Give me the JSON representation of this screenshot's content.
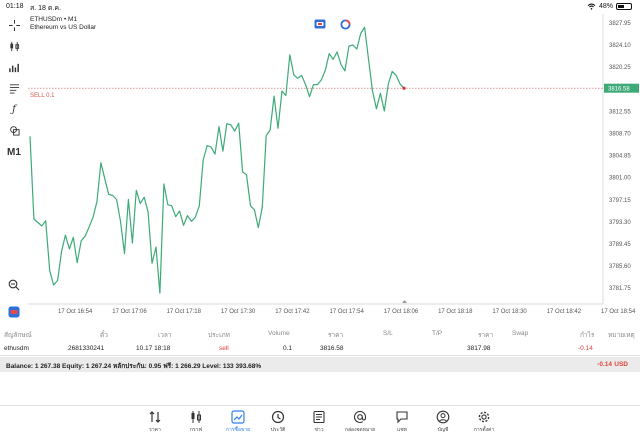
{
  "status_bar": {
    "time": "01:18",
    "date": "ส. 18 ต.ค.",
    "battery": "48%",
    "battery_level": 0.48
  },
  "chart": {
    "symbol_line": "ETHUSDm • M1",
    "symbol_desc": "Ethereum vs US Dollar",
    "trade_label": "SELL 0.1",
    "trade_price_label": "3816.58",
    "timeframe": "M1"
  },
  "chart_data": {
    "type": "line",
    "title": "",
    "ylim": [
      3779.0,
      3829.5
    ],
    "y_ticks": [
      "3827.95",
      "3824.10",
      "3820.25",
      "3816.58",
      "3812.55",
      "3808.70",
      "3804.85",
      "3801.00",
      "3797.15",
      "3793.30",
      "3789.45",
      "3785.60",
      "3781.75"
    ],
    "x_ticks": [
      "17 Oct 16:54",
      "17 Oct 17:06",
      "17 Oct 17:18",
      "17 Oct 17:30",
      "17 Oct 17:42",
      "17 Oct 17:54",
      "17 Oct 18:06",
      "17 Oct 18:18",
      "17 Oct 18:30",
      "17 Oct 18:42",
      "17 Oct 18:54"
    ],
    "line_color": "#3daa77",
    "trade_line_price": 3816.58,
    "series": [
      {
        "values": [
          3808.2,
          3793.8,
          3793.2,
          3792.6,
          3793.5,
          3784.8,
          3782.3,
          3783.1,
          3788.1,
          3791.0,
          3788.6,
          3790.6,
          3786.2,
          3790.0,
          3790.8,
          3792.4,
          3794.1,
          3796.8,
          3803.6,
          3800.8,
          3798.1,
          3797.9,
          3797.2,
          3793.4,
          3787.8,
          3797.2,
          3789.6,
          3798.8,
          3796.5,
          3797.6,
          3795.0,
          3786.1,
          3788.9,
          3780.9,
          3799.9,
          3796.3,
          3796.1,
          3794.2,
          3795.2,
          3792.7,
          3794.4,
          3793.4,
          3794.1,
          3796.1,
          3804.1,
          3806.6,
          3806.3,
          3805.1,
          3809.9,
          3805.6,
          3810.4,
          3810.2,
          3809.1,
          3810.5,
          3802.0,
          3801.5,
          3796.1,
          3795.4,
          3792.3,
          3795.9,
          3808.3,
          3809.3,
          3815.2,
          3809.6,
          3816.1,
          3815.3,
          3822.4,
          3818.9,
          3818.3,
          3818.8,
          3817.2,
          3815.1,
          3817.2,
          3817.2,
          3818.0,
          3819.7,
          3822.6,
          3821.6,
          3822.9,
          3820.7,
          3819.6,
          3823.9,
          3824.1,
          3823.4,
          3826.1,
          3827.2,
          3821.5,
          3816.1,
          3813.0,
          3815.7,
          3812.6,
          3817.3,
          3819.5,
          3818.8,
          3817.3,
          3816.58
        ]
      }
    ]
  },
  "table": {
    "headers": [
      "สัญลักษณ์",
      "ตั๋ว",
      "เวลา",
      "ประเภท",
      "Volume",
      "ราคา",
      "S/L",
      "T/P",
      "ราคา",
      "Swap",
      "กำไร",
      "หมายเหตุ"
    ],
    "row": [
      "ethusdm",
      "2681330241",
      "10.17 18:18",
      "sell",
      "0.1",
      "3816.58",
      "",
      "",
      "3817.98",
      "",
      "-0.14",
      ""
    ]
  },
  "balance": {
    "text": "Balance: 1 267.38 Equity: 1 267.24 หลักประกัน: 0.95 ฟรี: 1 266.29 Level: 133 393.68%",
    "pl": "-0.14",
    "currency": "USD"
  },
  "tabs": [
    {
      "label": "ราคา",
      "icon": "quotes-icon"
    },
    {
      "label": "กราฟ",
      "icon": "chart-icon"
    },
    {
      "label": "การซื้อขาย",
      "icon": "trade-icon"
    },
    {
      "label": "ประวัติ",
      "icon": "history-icon"
    },
    {
      "label": "ข่าว",
      "icon": "news-icon"
    },
    {
      "label": "กล่องจดหมาย",
      "icon": "mailbox-icon"
    },
    {
      "label": "แชท",
      "icon": "chat-icon"
    },
    {
      "label": "บัญชี",
      "icon": "account-icon"
    },
    {
      "label": "การตั้งค่า",
      "icon": "settings-icon"
    }
  ],
  "colors": {
    "accent": "#2f80ed",
    "profit_negative": "#e0433a",
    "trade_line": "#d9534f",
    "price_tag": "#3daa77"
  }
}
